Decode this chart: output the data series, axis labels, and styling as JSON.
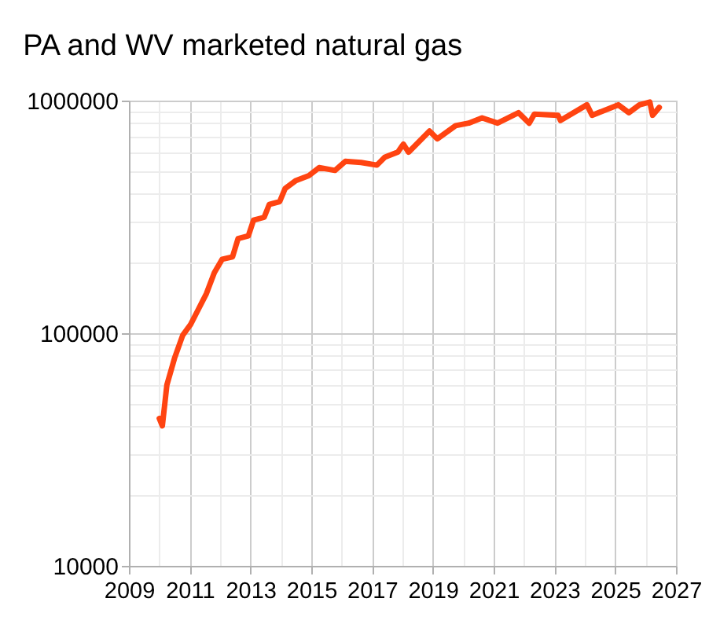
{
  "chart_data": {
    "type": "line",
    "title": "PA and WV marketed natural gas",
    "x": [
      2010.0,
      2010.1,
      2010.25,
      2010.5,
      2010.77,
      2011.03,
      2011.29,
      2011.55,
      2011.81,
      2012.07,
      2012.41,
      2012.59,
      2012.93,
      2013.1,
      2013.45,
      2013.62,
      2013.96,
      2014.14,
      2014.48,
      2014.92,
      2015.26,
      2015.78,
      2016.12,
      2016.64,
      2017.16,
      2017.42,
      2017.85,
      2018.03,
      2018.2,
      2018.89,
      2019.15,
      2019.75,
      2020.18,
      2020.62,
      2021.13,
      2021.82,
      2022.17,
      2022.34,
      2023.12,
      2023.2,
      2024.07,
      2024.24,
      2025.1,
      2025.45,
      2025.8,
      2026.14,
      2026.23,
      2026.45
    ],
    "series": [
      {
        "color": "#ff4411",
        "values": [
          43000,
          40000,
          60000,
          78000,
          98000,
          109000,
          127000,
          148000,
          182000,
          208000,
          213000,
          255000,
          262000,
          306000,
          315000,
          358000,
          368000,
          419000,
          452000,
          476000,
          515000,
          501000,
          548000,
          542000,
          528000,
          571000,
          601000,
          650000,
          600000,
          740000,
          685000,
          780000,
          800000,
          843000,
          800000,
          887000,
          800000,
          874000,
          865000,
          821000,
          959000,
          865000,
          959000,
          887000,
          959000,
          985000,
          865000,
          935000
        ]
      }
    ],
    "log": "y",
    "grid": true,
    "line_style": "solid",
    "marker": "none",
    "xlim": [
      2009,
      2027
    ],
    "xticks": [
      2009,
      {
        "value": 2010,
        "label": null
      },
      2011,
      {
        "value": 2012,
        "label": null
      },
      2013,
      {
        "value": 2014,
        "label": null
      },
      2015,
      {
        "value": 2016,
        "label": null
      },
      2017,
      {
        "value": 2018,
        "label": null
      },
      2019,
      {
        "value": 2020,
        "label": null
      },
      2021,
      {
        "value": 2022,
        "label": null
      },
      2023,
      {
        "value": 2024,
        "label": null
      },
      2025,
      {
        "value": 2026,
        "label": null
      },
      2027
    ],
    "ylim": [
      10000,
      1000000
    ],
    "yticks": [
      10000,
      {
        "value": 20000,
        "label": null
      },
      {
        "value": 30000,
        "label": null
      },
      {
        "value": 40000,
        "label": null
      },
      {
        "value": 50000,
        "label": null
      },
      {
        "value": 60000,
        "label": null
      },
      {
        "value": 70000,
        "label": null
      },
      {
        "value": 80000,
        "label": null
      },
      {
        "value": 90000,
        "label": null
      },
      100000,
      {
        "value": 200000,
        "label": null
      },
      {
        "value": 300000,
        "label": null
      },
      {
        "value": 400000,
        "label": null
      },
      {
        "value": 500000,
        "label": null
      },
      {
        "value": 600000,
        "label": null
      },
      {
        "value": 700000,
        "label": null
      },
      {
        "value": 800000,
        "label": null
      },
      {
        "value": 900000,
        "label": null
      },
      1000000
    ]
  }
}
